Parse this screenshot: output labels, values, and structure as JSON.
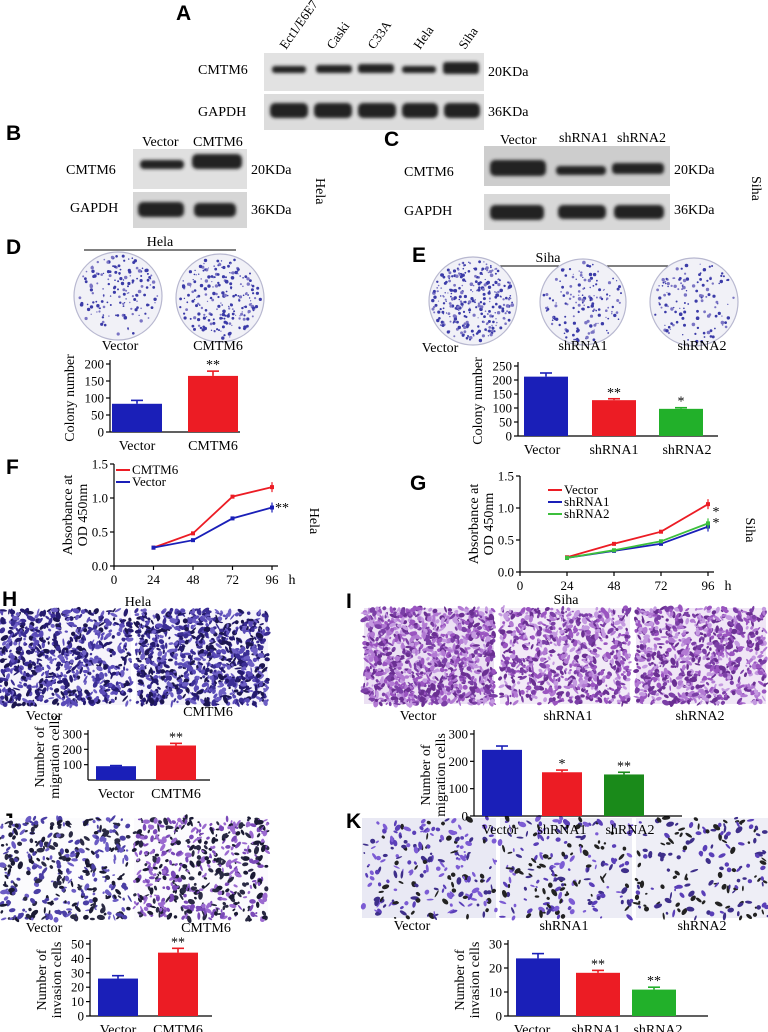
{
  "panel_labels": [
    "A",
    "B",
    "C",
    "D",
    "E",
    "F",
    "G",
    "H",
    "I",
    "J",
    "K"
  ],
  "colors": {
    "vector": "#1a1fb8",
    "cmtm6": "#ec1c24",
    "shrna1": "#ec1c24",
    "shrna2_bar": "#22b02a",
    "shrna2_i": "#1a8a1a",
    "shrna2_line": "#3cbf3c",
    "blot": "#1a1a1a"
  },
  "blot_A": {
    "lanes": [
      "Ect1/E6E7",
      "Caski",
      "C33A",
      "Hela",
      "Siha"
    ],
    "rows": [
      "CMTM6",
      "GAPDH"
    ],
    "sizes": [
      "20KDa",
      "36KDa"
    ]
  },
  "blot_B": {
    "lanes": [
      "Vector",
      "CMTM6"
    ],
    "rows": [
      "CMTM6",
      "GAPDH"
    ],
    "sizes": [
      "20KDa",
      "36KDa"
    ],
    "cell": "Hela"
  },
  "blot_C": {
    "lanes": [
      "Vector",
      "shRNA1",
      "shRNA2"
    ],
    "rows": [
      "CMTM6",
      "GAPDH"
    ],
    "sizes": [
      "20KDa",
      "36KDa"
    ],
    "cell": "Siha"
  },
  "panel_D": {
    "group": "Hela",
    "dish_labels": [
      "Vector",
      "CMTM6"
    ]
  },
  "panel_E": {
    "group": "Siha",
    "dish_labels": [
      "Vector",
      "shRNA1",
      "shRNA2"
    ]
  },
  "panel_H": {
    "group": "Hela",
    "image_labels": [
      "Vector",
      "CMTM6"
    ]
  },
  "panel_I": {
    "group": "Siha",
    "image_labels": [
      "Vector",
      "shRNA1",
      "shRNA2"
    ]
  },
  "panel_J": {
    "image_labels": [
      "Vector",
      "CMTM6"
    ]
  },
  "panel_K": {
    "image_labels": [
      "Vector",
      "shRNA1",
      "shRNA2"
    ]
  },
  "chart_data": [
    {
      "id": "D",
      "type": "bar",
      "categories": [
        "Vector",
        "CMTM6"
      ],
      "values": [
        83,
        165
      ],
      "errors": [
        10,
        14
      ],
      "sig": [
        "",
        "**"
      ],
      "ylabel": "Colony number",
      "ylim": [
        0,
        200
      ],
      "yticks": [
        0,
        50,
        100,
        150,
        200
      ]
    },
    {
      "id": "E",
      "type": "bar",
      "categories": [
        "Vector",
        "shRNA1",
        "shRNA2"
      ],
      "values": [
        212,
        128,
        97
      ],
      "errors": [
        13,
        5,
        4
      ],
      "sig": [
        "",
        "**",
        "*"
      ],
      "ylabel": "Colony number",
      "ylim": [
        0,
        250
      ],
      "yticks": [
        0,
        50,
        100,
        150,
        200,
        250
      ]
    },
    {
      "id": "F",
      "type": "line",
      "x": [
        24,
        48,
        72,
        96
      ],
      "series": [
        {
          "name": "CMTM6",
          "values": [
            0.27,
            0.48,
            1.02,
            1.16
          ]
        },
        {
          "name": "Vector",
          "values": [
            0.27,
            0.38,
            0.7,
            0.86
          ]
        }
      ],
      "ylabel": "Absorbance at OD 450nm",
      "xunit": "h",
      "ylim": [
        0,
        1.5
      ],
      "yticks": [
        0.0,
        0.5,
        1.0,
        1.5
      ],
      "xlim": [
        0,
        96
      ],
      "xticks": [
        0,
        24,
        48,
        72,
        96
      ],
      "sig": "**",
      "cell": "Hela"
    },
    {
      "id": "G",
      "type": "line",
      "x": [
        24,
        48,
        72,
        96
      ],
      "series": [
        {
          "name": "Vector",
          "values": [
            0.23,
            0.44,
            0.63,
            1.06
          ]
        },
        {
          "name": "shRNA1",
          "values": [
            0.22,
            0.33,
            0.44,
            0.71
          ]
        },
        {
          "name": "shRNA2",
          "values": [
            0.22,
            0.34,
            0.48,
            0.76
          ]
        }
      ],
      "ylabel": "Absorbance at OD 450nm",
      "xunit": "h",
      "ylim": [
        0,
        1.5
      ],
      "yticks": [
        0.0,
        0.5,
        1.0,
        1.5
      ],
      "xlim": [
        0,
        96
      ],
      "xticks": [
        0,
        24,
        48,
        72,
        96
      ],
      "sig": [
        "*",
        "*"
      ],
      "cell": "Siha"
    },
    {
      "id": "H",
      "type": "bar",
      "categories": [
        "Vector",
        "CMTM6"
      ],
      "values": [
        90,
        225
      ],
      "errors": [
        4,
        14
      ],
      "sig": [
        "",
        "**"
      ],
      "ylabel": "Number of migration cells",
      "ylim": [
        0,
        300
      ],
      "yticks": [
        100,
        200,
        300
      ]
    },
    {
      "id": "I",
      "type": "bar",
      "categories": [
        "Vector",
        "shRNA1",
        "shRNA2"
      ],
      "values": [
        242,
        160,
        152
      ],
      "errors": [
        14,
        8,
        8
      ],
      "sig": [
        "",
        "*",
        "**"
      ],
      "ylabel": "Number of migration cells",
      "ylim": [
        0,
        300
      ],
      "yticks": [
        0,
        100,
        200,
        300
      ]
    },
    {
      "id": "J",
      "type": "bar",
      "categories": [
        "Vector",
        "CMTM6"
      ],
      "values": [
        26,
        44
      ],
      "errors": [
        2,
        3
      ],
      "sig": [
        "",
        "**"
      ],
      "ylabel": "Number of invasion cells",
      "ylim": [
        0,
        50
      ],
      "yticks": [
        0,
        10,
        20,
        30,
        40,
        50
      ]
    },
    {
      "id": "K",
      "type": "bar",
      "categories": [
        "Vector",
        "shRNA1",
        "shRNA2"
      ],
      "values": [
        24,
        18,
        11
      ],
      "errors": [
        2,
        1,
        1
      ],
      "sig": [
        "",
        "**",
        "**"
      ],
      "ylabel": "Number of invasion cells",
      "ylim": [
        0,
        30
      ],
      "yticks": [
        0,
        10,
        20,
        30
      ]
    }
  ]
}
